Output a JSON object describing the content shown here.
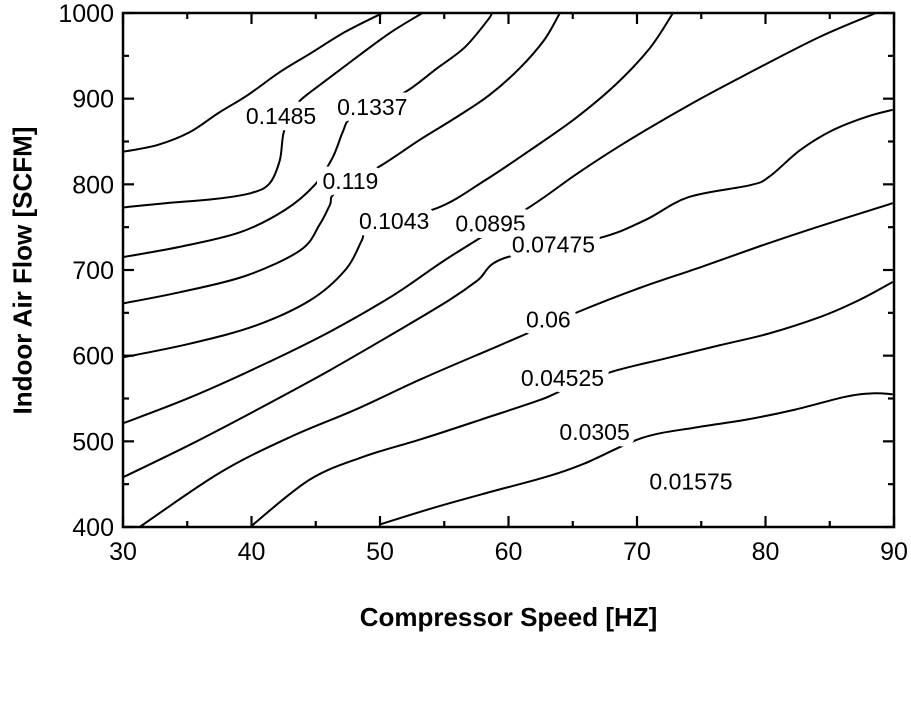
{
  "figure": {
    "background_color": "#ffffff",
    "line_color": "#000000",
    "text_color": "#000000"
  },
  "axes": {
    "x": {
      "title": "Compressor Speed [HZ]",
      "min": 30,
      "max": 90,
      "major_ticks": [
        30,
        40,
        50,
        60,
        70,
        80,
        90
      ],
      "minor_ticks": [
        35,
        45,
        55,
        65,
        75,
        85
      ]
    },
    "y": {
      "title": "Indoor Air Flow [SCFM]",
      "min": 400,
      "max": 1000,
      "major_ticks": [
        400,
        500,
        600,
        700,
        800,
        900,
        1000
      ],
      "minor_ticks": [
        450,
        550,
        650,
        750,
        850,
        950
      ]
    }
  },
  "chart_data": {
    "type": "contour",
    "title": "",
    "xlabel": "Compressor Speed [HZ]",
    "ylabel": "Indoor Air Flow [SCFM]",
    "xlim": [
      30,
      90
    ],
    "ylim": [
      400,
      1000
    ],
    "grid": false,
    "legend": "none",
    "contour_levels": [
      0.01575,
      0.0305,
      0.04525,
      0.06,
      0.07475,
      0.0895,
      0.1043,
      0.119,
      0.1337,
      0.1485
    ],
    "contours": [
      {
        "label": null,
        "label_anchor": null,
        "points": [
          [
            30,
            838
          ],
          [
            32.7,
            846
          ],
          [
            35.2,
            861
          ],
          [
            37.5,
            884
          ],
          [
            39.7,
            904
          ],
          [
            42.2,
            931
          ],
          [
            44.6,
            953
          ],
          [
            47.3,
            978
          ],
          [
            50.2,
            1000
          ]
        ]
      },
      {
        "label": "0.1485",
        "label_anchor": [
          42.3,
          880
        ],
        "points": [
          [
            30,
            773
          ],
          [
            33.3,
            778
          ],
          [
            37.2,
            783
          ],
          [
            40,
            790
          ],
          [
            41.4,
            801
          ],
          [
            42.2,
            828
          ],
          [
            42.5,
            860
          ],
          [
            43.2,
            884
          ],
          [
            43.8,
            898
          ],
          [
            45.5,
            918
          ],
          [
            47.8,
            944
          ],
          [
            50.8,
            977
          ],
          [
            53.3,
            1000
          ]
        ]
      },
      {
        "label": "0.1337",
        "label_anchor": [
          49.4,
          890
        ],
        "points": [
          [
            30,
            715
          ],
          [
            34.4,
            727
          ],
          [
            39.1,
            744
          ],
          [
            42.6,
            770
          ],
          [
            44.9,
            799
          ],
          [
            46.3,
            831
          ],
          [
            47.1,
            861
          ],
          [
            47.7,
            877
          ],
          [
            49.8,
            893
          ],
          [
            52.1,
            909
          ],
          [
            54.4,
            935
          ],
          [
            56.6,
            960
          ],
          [
            58.4,
            992
          ],
          [
            58.7,
            1000
          ]
        ]
      },
      {
        "label": "0.119",
        "label_anchor": [
          47.7,
          804
        ],
        "points": [
          [
            30,
            661
          ],
          [
            34.4,
            674
          ],
          [
            39.5,
            693
          ],
          [
            43.8,
            723
          ],
          [
            45.3,
            753
          ],
          [
            46.1,
            776
          ],
          [
            46.6,
            791
          ],
          [
            50.2,
            823
          ],
          [
            53.1,
            852
          ],
          [
            55.8,
            877
          ],
          [
            58.5,
            904
          ],
          [
            60.9,
            936
          ],
          [
            62.8,
            969
          ],
          [
            64,
            1000
          ]
        ]
      },
      {
        "label": "0.1043",
        "label_anchor": [
          51.1,
          757
        ],
        "points": [
          [
            30,
            598
          ],
          [
            35.2,
            614
          ],
          [
            40.3,
            635
          ],
          [
            44.6,
            665
          ],
          [
            47.3,
            700
          ],
          [
            48.6,
            735
          ],
          [
            49.2,
            753
          ],
          [
            54.4,
            772
          ],
          [
            58.2,
            805
          ],
          [
            61.7,
            840
          ],
          [
            65.2,
            877
          ],
          [
            68.3,
            916
          ],
          [
            71,
            959
          ],
          [
            72.8,
            1000
          ]
        ]
      },
      {
        "label": "0.0895",
        "label_anchor": [
          58.6,
          754
        ],
        "points": [
          [
            30,
            521
          ],
          [
            35.2,
            551
          ],
          [
            40.7,
            588
          ],
          [
            46.1,
            628
          ],
          [
            51.1,
            671
          ],
          [
            55.3,
            714
          ],
          [
            61.7,
            774
          ],
          [
            65.2,
            811
          ],
          [
            69,
            848
          ],
          [
            74.1,
            893
          ],
          [
            79.1,
            933
          ],
          [
            84.2,
            972
          ],
          [
            88.6,
            1000
          ]
        ]
      },
      {
        "label": "0.07475",
        "label_anchor": [
          63.5,
          730
        ],
        "points": [
          [
            30,
            458
          ],
          [
            35.2,
            496
          ],
          [
            40.7,
            539
          ],
          [
            46.1,
            583
          ],
          [
            51.5,
            630
          ],
          [
            55.4,
            665
          ],
          [
            57.6,
            688
          ],
          [
            59.7,
            714
          ],
          [
            67,
            737
          ],
          [
            70.6,
            758
          ],
          [
            74,
            785
          ],
          [
            78.8,
            799
          ],
          [
            80.3,
            809
          ],
          [
            82.7,
            840
          ],
          [
            85.2,
            863
          ],
          [
            87.9,
            879
          ],
          [
            89.9,
            887
          ]
        ]
      },
      {
        "label": "0.06",
        "label_anchor": [
          63.1,
          642
        ],
        "points": [
          [
            31.3,
            400
          ],
          [
            37.5,
            463
          ],
          [
            43,
            505
          ],
          [
            48.1,
            537
          ],
          [
            53.1,
            572
          ],
          [
            59.3,
            612
          ],
          [
            65.4,
            651
          ],
          [
            70.2,
            679
          ],
          [
            74.9,
            703
          ],
          [
            79.6,
            728
          ],
          [
            84.2,
            751
          ],
          [
            89.9,
            778
          ]
        ]
      },
      {
        "label": "0.04525",
        "label_anchor": [
          64.2,
          574
        ],
        "points": [
          [
            39.9,
            400
          ],
          [
            44.5,
            455
          ],
          [
            48.7,
            482
          ],
          [
            53.1,
            502
          ],
          [
            57.8,
            525
          ],
          [
            62.4,
            548
          ],
          [
            64,
            558
          ],
          [
            68,
            581
          ],
          [
            72.3,
            597
          ],
          [
            76.4,
            612
          ],
          [
            80.3,
            626
          ],
          [
            84.4,
            646
          ],
          [
            87.3,
            665
          ],
          [
            89.9,
            686
          ]
        ]
      },
      {
        "label": "0.0305",
        "label_anchor": [
          66.7,
          511
        ],
        "points": [
          [
            50,
            403
          ],
          [
            54.3,
            423
          ],
          [
            58.6,
            441
          ],
          [
            62.8,
            458
          ],
          [
            65.9,
            474
          ],
          [
            70.4,
            504
          ],
          [
            74.5,
            516
          ],
          [
            78.4,
            525
          ],
          [
            82.3,
            537
          ],
          [
            86.2,
            552
          ],
          [
            88.3,
            556
          ],
          [
            89.9,
            555
          ]
        ]
      },
      {
        "label": "0.01575",
        "label_anchor": [
          74.2,
          453
        ],
        "points": []
      }
    ]
  }
}
